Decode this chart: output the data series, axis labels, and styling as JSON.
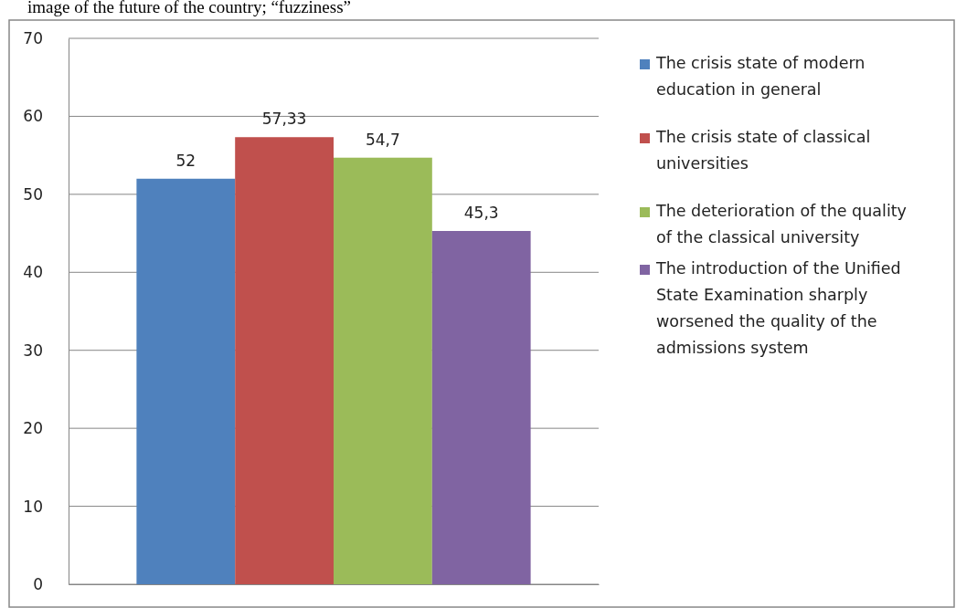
{
  "chart_data": {
    "type": "bar",
    "categories": [
      null
    ],
    "series": [
      {
        "name": "The crisis state of modern education in general",
        "color": "#4f81bd",
        "values": [
          52
        ],
        "value_labels": [
          "52"
        ]
      },
      {
        "name": "The crisis state of classical universities",
        "color": "#c0504d",
        "values": [
          57.33
        ],
        "value_labels": [
          "57,33"
        ]
      },
      {
        "name": "The deterioration of the quality of the classical university",
        "color": "#9bbb59",
        "values": [
          54.7
        ],
        "value_labels": [
          "54,7"
        ]
      },
      {
        "name": "The introduction of the Unified State Examination sharply worsened the quality of the admissions system",
        "color": "#8064a2",
        "values": [
          45.3
        ],
        "value_labels": [
          "45,3"
        ]
      }
    ],
    "ylim": [
      0,
      70
    ],
    "yticks": [
      0,
      10,
      20,
      30,
      40,
      50,
      60,
      70
    ],
    "grid": "y",
    "legend": "right",
    "annotations": [
      "image of the future of the country; “fuzziness”"
    ]
  }
}
